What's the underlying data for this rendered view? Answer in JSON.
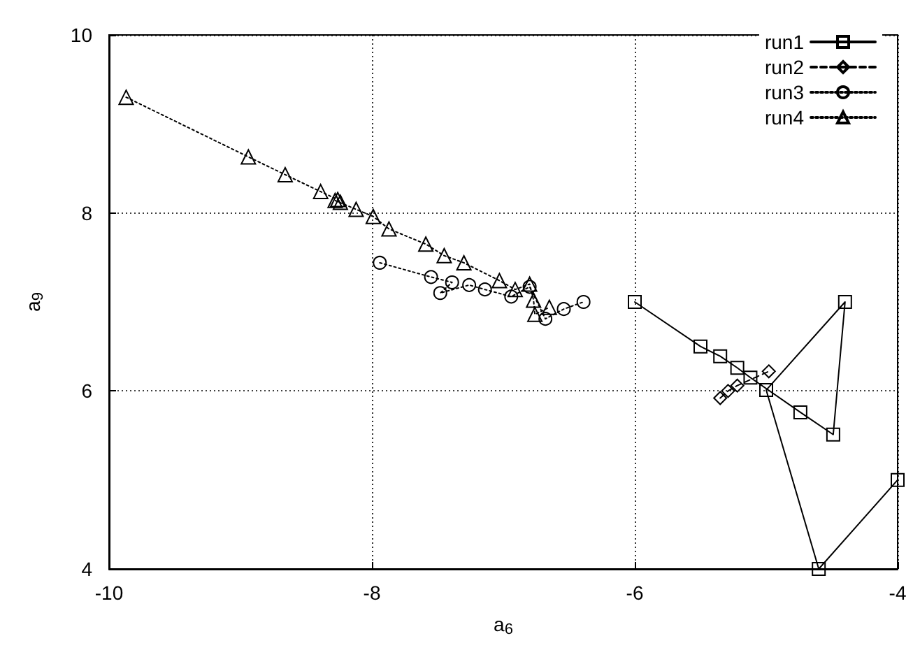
{
  "chart_data": {
    "type": "line",
    "xlabel": "a$_{6}$",
    "ylabel": "a$_{9}$",
    "xlim": [
      -10,
      -4
    ],
    "xticks": [
      -10,
      -8,
      -6,
      -4
    ],
    "ylim": [
      4,
      10
    ],
    "yticks": [
      4,
      6,
      8,
      10
    ],
    "grid": true,
    "legend": "top right",
    "series": [
      {
        "name": "run1",
        "color": "#000000",
        "marker": "square",
        "line_style": "solid",
        "x": [
          -6,
          -5.5,
          -5.35,
          -5.22,
          -5.12,
          -4.74,
          -4.49,
          -4.4,
          -5.0,
          -4.6,
          -4
        ],
        "values": [
          7,
          6.5,
          6.39,
          6.26,
          6.15,
          5.76,
          5.51,
          7,
          6.01,
          4,
          5
        ]
      },
      {
        "name": "run2",
        "color": "#000000",
        "marker": "diamond",
        "line_style": "dashed",
        "x": [
          -5.35,
          -5.29,
          -5.22,
          -4.98
        ],
        "values": [
          5.92,
          6.0,
          6.06,
          6.22
        ]
      },
      {
        "name": "run3",
        "color": "#000000",
        "marker": "circle",
        "line_style": "dotted",
        "x": [
          -7.94,
          -7.55,
          -7.39,
          -7.48,
          -7.26,
          -7.14,
          -6.94,
          -6.8,
          -6.68,
          -6.54,
          -6.39
        ],
        "values": [
          7.44,
          7.28,
          7.22,
          7.1,
          7.19,
          7.14,
          7.06,
          7.17,
          6.81,
          6.92,
          7.0
        ]
      },
      {
        "name": "run4",
        "color": "#000000",
        "marker": "triangle",
        "line_style": "dotted",
        "x": [
          -9.87,
          -8.94,
          -8.66,
          -8.39,
          -8.26,
          -8.24,
          -8.28,
          -8.12,
          -7.99,
          -7.87,
          -7.59,
          -7.45,
          -7.3,
          -7.03,
          -6.91,
          -6.8,
          -6.77,
          -6.76,
          -6.65
        ],
        "values": [
          9.3,
          8.63,
          8.43,
          8.24,
          8.15,
          8.12,
          8.14,
          8.04,
          7.96,
          7.82,
          7.65,
          7.52,
          7.44,
          7.24,
          7.14,
          7.2,
          7.02,
          6.86,
          6.94
        ]
      }
    ]
  }
}
